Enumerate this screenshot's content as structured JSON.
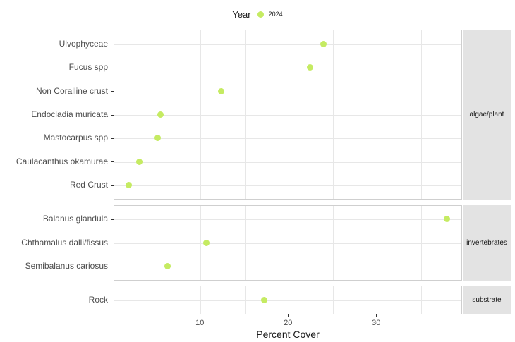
{
  "legend": {
    "title": "Year",
    "entries": [
      {
        "label": "2024",
        "color": "#c5eb62"
      }
    ]
  },
  "axes": {
    "x_label": "Percent Cover",
    "x_tick_labels": [
      "10",
      "20",
      "30"
    ]
  },
  "colors": {
    "point": "#c5eb62",
    "gridline": "#e7e7e7",
    "panel_border": "#cfcfcf",
    "strip_background": "#e3e3e3",
    "axis_text": "#4d4d4d",
    "text": "#1a1a1a"
  },
  "chart_data": {
    "type": "scatter",
    "subtype": "horizontal-dot-plot",
    "title": "",
    "xlabel": "Percent Cover",
    "ylabel": "",
    "legend_title": "Year",
    "legend_position": "top",
    "series_name": "2024",
    "point_color": "#c5eb62",
    "x_major_ticks": [
      10,
      20,
      30
    ],
    "x_minor_ticks": [
      5,
      15,
      25,
      35
    ],
    "xlim": [
      0.3,
      39.7
    ],
    "grid": true,
    "facets": [
      {
        "label": "algae/plant",
        "categories": [
          "Ulvophyceae",
          "Fucus spp",
          "Non Coralline crust",
          "Endocladia muricata",
          "Mastocarpus spp",
          "Caulacanthus okamurae",
          "Red Crust"
        ],
        "values": [
          24.0,
          22.5,
          12.4,
          5.5,
          5.2,
          3.1,
          1.9
        ]
      },
      {
        "label": "invertebrates",
        "categories": [
          "Balanus glandula",
          "Chthamalus dalli/fissus",
          "Semibalanus cariosus"
        ],
        "values": [
          38.0,
          10.7,
          6.3
        ]
      },
      {
        "label": "substrate",
        "categories": [
          "Rock"
        ],
        "values": [
          17.3
        ]
      }
    ]
  }
}
